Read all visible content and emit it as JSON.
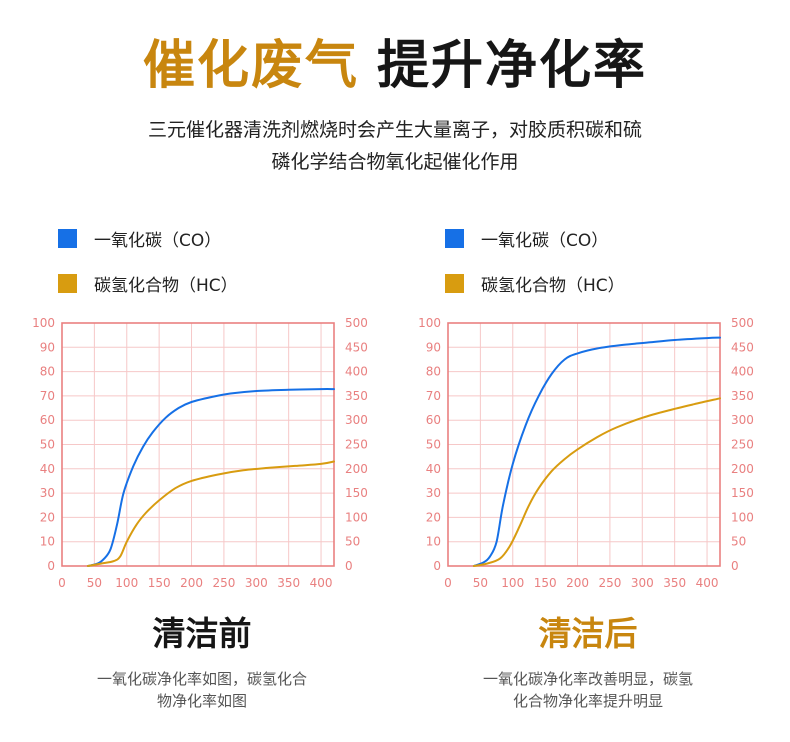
{
  "header": {
    "title_highlight": "催化废气",
    "title_rest": "提升净化率",
    "subtitle_line1": "三元催化器清洗剂燃烧时会产生大量离子，对胶质积碳和硫",
    "subtitle_line2": "磷化学结合物氧化起催化作用"
  },
  "colors": {
    "co": "#1670e6",
    "hc": "#d89c10",
    "axis": "#e98080",
    "grid": "#f6c8c8"
  },
  "panels": [
    {
      "legend": {
        "co_label": "一氧化碳（CO）",
        "hc_label": "碳氢化合物（HC）"
      },
      "caption": "清洁前",
      "caption_color": "#161616",
      "desc_line1": "一氧化碳净化率如图，碳氢化合",
      "desc_line2": "物净化率如图"
    },
    {
      "legend": {
        "co_label": "一氧化碳（CO）",
        "hc_label": "碳氢化合物（HC）"
      },
      "caption": "清洁后",
      "caption_color": "#c8860f",
      "desc_line1": "一氧化碳净化率改善明显，碳氢",
      "desc_line2": "化合物净化率提升明显"
    }
  ],
  "chart_data": [
    {
      "type": "line",
      "x_ticks": [
        0,
        50,
        100,
        150,
        200,
        250,
        300,
        350,
        400
      ],
      "xlim": [
        0,
        420
      ],
      "y_left_ticks": [
        0,
        10,
        20,
        30,
        40,
        50,
        60,
        70,
        80,
        90,
        100
      ],
      "ylim_left": [
        0,
        100
      ],
      "y_right_ticks": [
        0,
        50,
        100,
        150,
        200,
        250,
        300,
        350,
        400,
        450,
        500
      ],
      "ylim_right": [
        0,
        500
      ],
      "series": [
        {
          "name": "一氧化碳（CO）",
          "axis": "left",
          "x": [
            40,
            55,
            65,
            75,
            85,
            95,
            110,
            125,
            140,
            160,
            180,
            200,
            230,
            260,
            300,
            350,
            400,
            420
          ],
          "y": [
            0,
            1,
            3,
            7,
            17,
            30,
            41,
            49,
            55,
            61,
            65,
            67.5,
            69.5,
            71,
            72,
            72.5,
            72.8,
            72.8
          ]
        },
        {
          "name": "碳氢化合物（HC）",
          "axis": "right",
          "x": [
            40,
            60,
            80,
            90,
            100,
            115,
            130,
            150,
            175,
            200,
            240,
            280,
            320,
            360,
            400,
            420
          ],
          "y": [
            0,
            5,
            10,
            20,
            50,
            85,
            110,
            135,
            160,
            175,
            188,
            197,
            202,
            206,
            210,
            215
          ]
        }
      ]
    },
    {
      "type": "line",
      "x_ticks": [
        0,
        50,
        100,
        150,
        200,
        250,
        300,
        350,
        400
      ],
      "xlim": [
        0,
        420
      ],
      "y_left_ticks": [
        0,
        10,
        20,
        30,
        40,
        50,
        60,
        70,
        80,
        90,
        100
      ],
      "ylim_left": [
        0,
        100
      ],
      "y_right_ticks": [
        0,
        50,
        100,
        150,
        200,
        250,
        300,
        350,
        400,
        450,
        500
      ],
      "ylim_right": [
        0,
        500
      ],
      "series": [
        {
          "name": "一氧化碳（CO）",
          "axis": "left",
          "x": [
            40,
            55,
            65,
            75,
            85,
            100,
            120,
            140,
            160,
            180,
            200,
            230,
            270,
            310,
            350,
            400,
            420
          ],
          "y": [
            0,
            1.5,
            4,
            10,
            25,
            42,
            58,
            70,
            79,
            85,
            87.5,
            89.5,
            91,
            92,
            93,
            93.8,
            94
          ]
        },
        {
          "name": "碳氢化合物（HC）",
          "axis": "right",
          "x": [
            40,
            60,
            80,
            95,
            110,
            125,
            140,
            160,
            180,
            200,
            230,
            260,
            300,
            340,
            380,
            420
          ],
          "y": [
            0,
            5,
            15,
            40,
            80,
            125,
            160,
            195,
            220,
            240,
            265,
            285,
            305,
            320,
            333,
            345
          ]
        }
      ]
    }
  ]
}
